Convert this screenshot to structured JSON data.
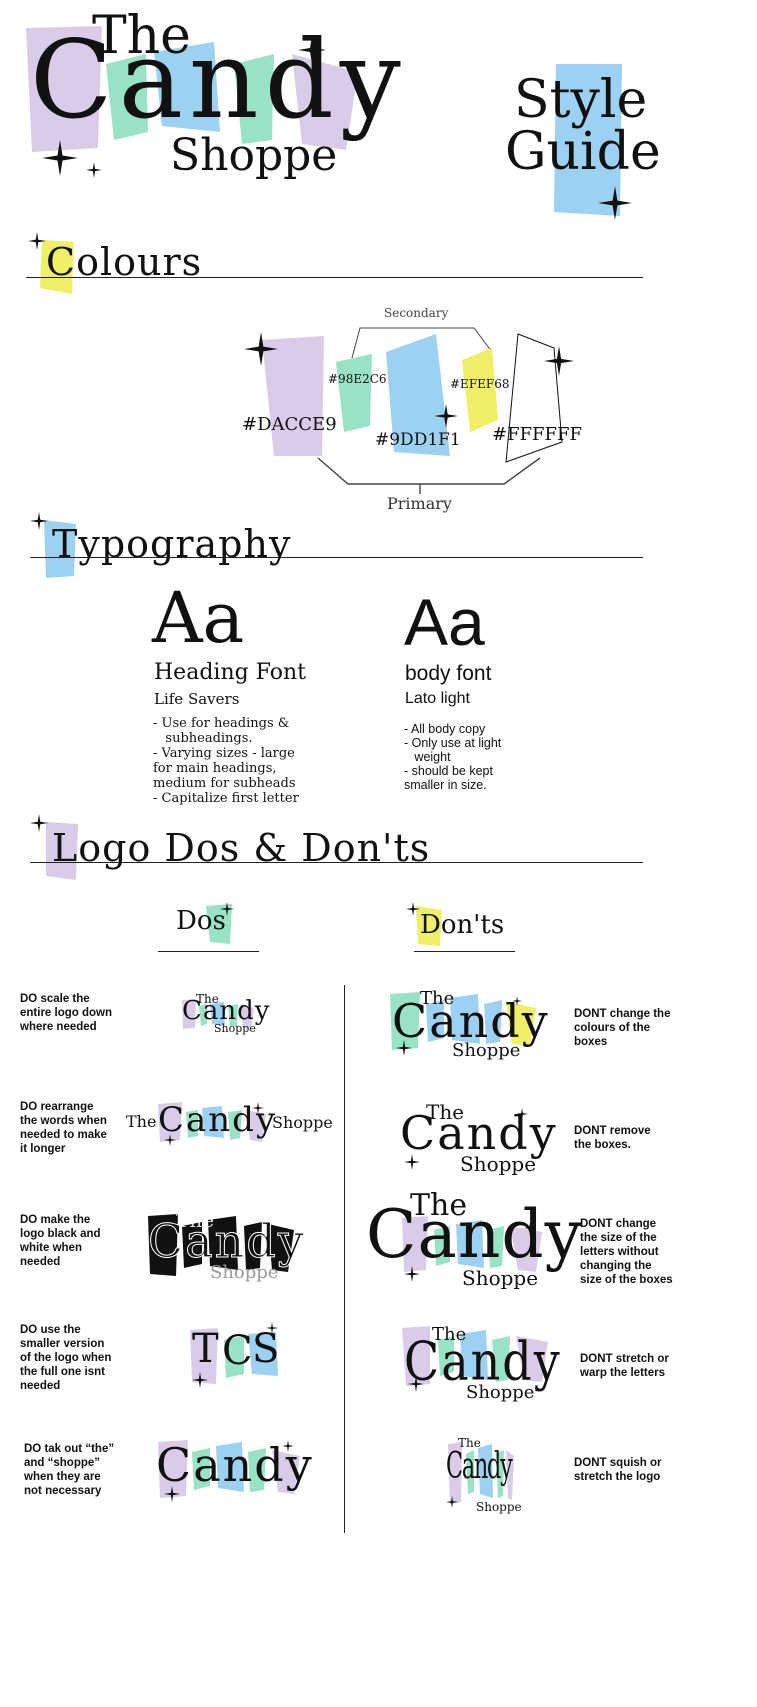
{
  "colors": {
    "purple": "#DACCE9",
    "mint": "#98E2C6",
    "blue": "#9DD1F1",
    "yellow": "#EFEF68",
    "white": "#FFFFFF"
  },
  "header": {
    "logo_the": "The",
    "logo_candy": "Candy",
    "logo_shoppe": "Shoppe",
    "style": "Style",
    "guide": "Guide"
  },
  "colours_section": {
    "title": "Colours",
    "secondary_label": "Secondary",
    "primary_label": "Primary",
    "swatches": [
      {
        "hex": "#DACCE9"
      },
      {
        "hex": "#98E2C6"
      },
      {
        "hex": "#9DD1F1"
      },
      {
        "hex": "#EFEF68"
      },
      {
        "hex": "#FFFFFF"
      }
    ]
  },
  "typography": {
    "title": "Typography",
    "heading": {
      "sample": "Aa",
      "label": "Heading Font",
      "font_name": "Life Savers",
      "notes": [
        "- Use for headings &",
        "   subheadings.",
        "- Varying sizes  - large",
        "for main headings,",
        "medium for subheads",
        "- Capitalize first letter"
      ]
    },
    "body": {
      "sample": "Aa",
      "label": "body font",
      "font_name": "Lato light",
      "notes": [
        "- All body copy",
        "- Only use at light",
        "   weight",
        "- should be kept",
        "smaller in size."
      ]
    }
  },
  "logo_rules": {
    "title": "Logo Dos & Don'ts",
    "dos_title": "Dos",
    "donts_title": "Don'ts",
    "dos": [
      [
        "DO scale the",
        "entire logo down",
        "where needed"
      ],
      [
        "DO rearrange",
        "the words when",
        "needed to make",
        "it longer"
      ],
      [
        "DO make the",
        "logo black and",
        "white when",
        "needed"
      ],
      [
        "DO use the",
        "smaller version",
        "of the logo when",
        "the full one isnt",
        "needed"
      ],
      [
        "DO tak out “the”",
        "and “shoppe”",
        "when they are",
        "not necessary"
      ]
    ],
    "donts": [
      [
        "DONT change the",
        "colours of the",
        "boxes"
      ],
      [
        "DONT remove",
        "the boxes."
      ],
      [
        "DONT change",
        "the size of the",
        "letters without",
        "changing the",
        "size of the boxes"
      ],
      [
        "DONT stretch or",
        "warp the letters"
      ],
      [
        "DONT squish or",
        "stretch the logo"
      ]
    ],
    "tcs": [
      "T",
      "C",
      "S"
    ]
  }
}
